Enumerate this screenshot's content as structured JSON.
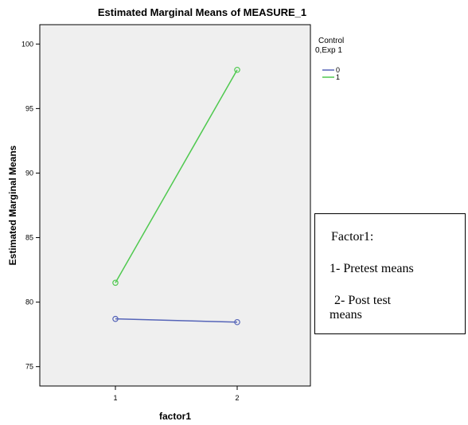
{
  "chart_data": {
    "type": "line",
    "title": "Estimated Marginal Means of MEASURE_1",
    "xlabel": "factor1",
    "ylabel": "Estimated Marginal Means",
    "categories": [
      "1",
      "2"
    ],
    "ylim": [
      73.5,
      101.5
    ],
    "yticks": [
      75,
      80,
      85,
      90,
      95,
      100
    ],
    "grid": false,
    "legend": {
      "title_line1": "Control",
      "title_line2": "0,Exp 1",
      "position": "top-right"
    },
    "series": [
      {
        "name": "0",
        "values": [
          78.7,
          78.45
        ],
        "color": "#5564b8"
      },
      {
        "name": "1",
        "values": [
          81.5,
          98.0
        ],
        "color": "#4fc94f"
      }
    ],
    "plot_background": "#efefef"
  },
  "note": {
    "title": "Factor1:",
    "line1": "1- Pretest means",
    "line2": " 2- Post test",
    "line3": "means"
  }
}
